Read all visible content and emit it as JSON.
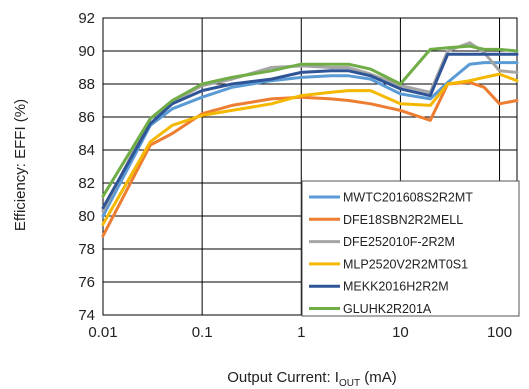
{
  "chart_data": {
    "type": "line",
    "xscale": "log",
    "xlim": [
      0.01,
      150
    ],
    "ylim": [
      74,
      92
    ],
    "grid": true,
    "legend_position": "bottom-right",
    "xlabel": {
      "main": "Output Current: I",
      "sub": "OUT",
      "unit": " (mA)"
    },
    "ylabel": "Efficiency: EFFI  (%)",
    "x_ticks": [
      {
        "value": 0.01,
        "label": "0.01"
      },
      {
        "value": 0.1,
        "label": "0.1"
      },
      {
        "value": 1,
        "label": "1"
      },
      {
        "value": 10,
        "label": "10"
      },
      {
        "value": 100,
        "label": "100"
      }
    ],
    "y_ticks": [
      {
        "value": 74,
        "label": "74"
      },
      {
        "value": 76,
        "label": "76"
      },
      {
        "value": 78,
        "label": "78"
      },
      {
        "value": 80,
        "label": "80"
      },
      {
        "value": 82,
        "label": "82"
      },
      {
        "value": 84,
        "label": "84"
      },
      {
        "value": 86,
        "label": "86"
      },
      {
        "value": 88,
        "label": "88"
      },
      {
        "value": 90,
        "label": "90"
      },
      {
        "value": 92,
        "label": "92"
      }
    ],
    "series": [
      {
        "name": "MWTC201608S2R2MT",
        "color": "#5B9BD5",
        "points": [
          [
            0.01,
            80.0
          ],
          [
            0.03,
            85.5
          ],
          [
            0.05,
            86.5
          ],
          [
            0.1,
            87.2
          ],
          [
            0.2,
            87.8
          ],
          [
            0.5,
            88.2
          ],
          [
            1,
            88.4
          ],
          [
            2,
            88.5
          ],
          [
            3,
            88.5
          ],
          [
            5,
            88.3
          ],
          [
            10,
            87.4
          ],
          [
            20,
            87.1
          ],
          [
            30,
            88.1
          ],
          [
            50,
            89.2
          ],
          [
            70,
            89.3
          ],
          [
            100,
            89.3
          ],
          [
            150,
            89.3
          ]
        ]
      },
      {
        "name": "DFE18SBN2R2MELL",
        "color": "#ED7D31",
        "points": [
          [
            0.01,
            78.8
          ],
          [
            0.03,
            84.3
          ],
          [
            0.05,
            85.0
          ],
          [
            0.1,
            86.2
          ],
          [
            0.2,
            86.7
          ],
          [
            0.5,
            87.1
          ],
          [
            1,
            87.2
          ],
          [
            2,
            87.1
          ],
          [
            3,
            87.0
          ],
          [
            5,
            86.8
          ],
          [
            10,
            86.4
          ],
          [
            20,
            85.8
          ],
          [
            30,
            88.0
          ],
          [
            50,
            88.1
          ],
          [
            70,
            87.8
          ],
          [
            100,
            86.8
          ],
          [
            150,
            87.0
          ]
        ]
      },
      {
        "name": "DFE252010F-2R2M",
        "color": "#A5A5A5",
        "points": [
          [
            0.01,
            80.3
          ],
          [
            0.03,
            85.9
          ],
          [
            0.05,
            86.9
          ],
          [
            0.1,
            87.9
          ],
          [
            0.2,
            88.3
          ],
          [
            0.5,
            89.0
          ],
          [
            1,
            89.1
          ],
          [
            2,
            89.0
          ],
          [
            3,
            89.0
          ],
          [
            5,
            88.6
          ],
          [
            10,
            87.9
          ],
          [
            20,
            87.5
          ],
          [
            30,
            90.0
          ],
          [
            50,
            90.5
          ],
          [
            70,
            89.9
          ],
          [
            100,
            88.8
          ],
          [
            150,
            88.7
          ]
        ]
      },
      {
        "name": "MLP2520V2R2MT0S1",
        "color": "#F5B800",
        "points": [
          [
            0.01,
            79.5
          ],
          [
            0.03,
            84.5
          ],
          [
            0.05,
            85.5
          ],
          [
            0.1,
            86.1
          ],
          [
            0.2,
            86.4
          ],
          [
            0.5,
            86.8
          ],
          [
            1,
            87.3
          ],
          [
            2,
            87.5
          ],
          [
            3,
            87.6
          ],
          [
            5,
            87.6
          ],
          [
            10,
            86.8
          ],
          [
            20,
            86.7
          ],
          [
            30,
            88.0
          ],
          [
            50,
            88.2
          ],
          [
            70,
            88.4
          ],
          [
            100,
            88.6
          ],
          [
            150,
            88.2
          ]
        ]
      },
      {
        "name": "MEKK2016H2R2M",
        "color": "#2F5597",
        "points": [
          [
            0.01,
            80.5
          ],
          [
            0.03,
            85.6
          ],
          [
            0.05,
            86.8
          ],
          [
            0.1,
            87.6
          ],
          [
            0.2,
            88.0
          ],
          [
            0.5,
            88.3
          ],
          [
            1,
            88.7
          ],
          [
            2,
            88.8
          ],
          [
            3,
            88.8
          ],
          [
            5,
            88.5
          ],
          [
            10,
            87.7
          ],
          [
            20,
            87.3
          ],
          [
            30,
            89.8
          ],
          [
            50,
            89.8
          ],
          [
            70,
            89.8
          ],
          [
            100,
            89.8
          ],
          [
            150,
            89.8
          ]
        ]
      },
      {
        "name": "GLUHK2R201A",
        "color": "#70AD47",
        "points": [
          [
            0.01,
            81.2
          ],
          [
            0.03,
            85.9
          ],
          [
            0.05,
            87.0
          ],
          [
            0.1,
            88.0
          ],
          [
            0.2,
            88.4
          ],
          [
            0.5,
            88.8
          ],
          [
            1,
            89.2
          ],
          [
            2,
            89.2
          ],
          [
            3,
            89.2
          ],
          [
            5,
            88.9
          ],
          [
            10,
            88.0
          ],
          [
            20,
            90.1
          ],
          [
            30,
            90.2
          ],
          [
            50,
            90.3
          ],
          [
            70,
            90.1
          ],
          [
            100,
            90.1
          ],
          [
            150,
            90.0
          ]
        ]
      }
    ]
  }
}
